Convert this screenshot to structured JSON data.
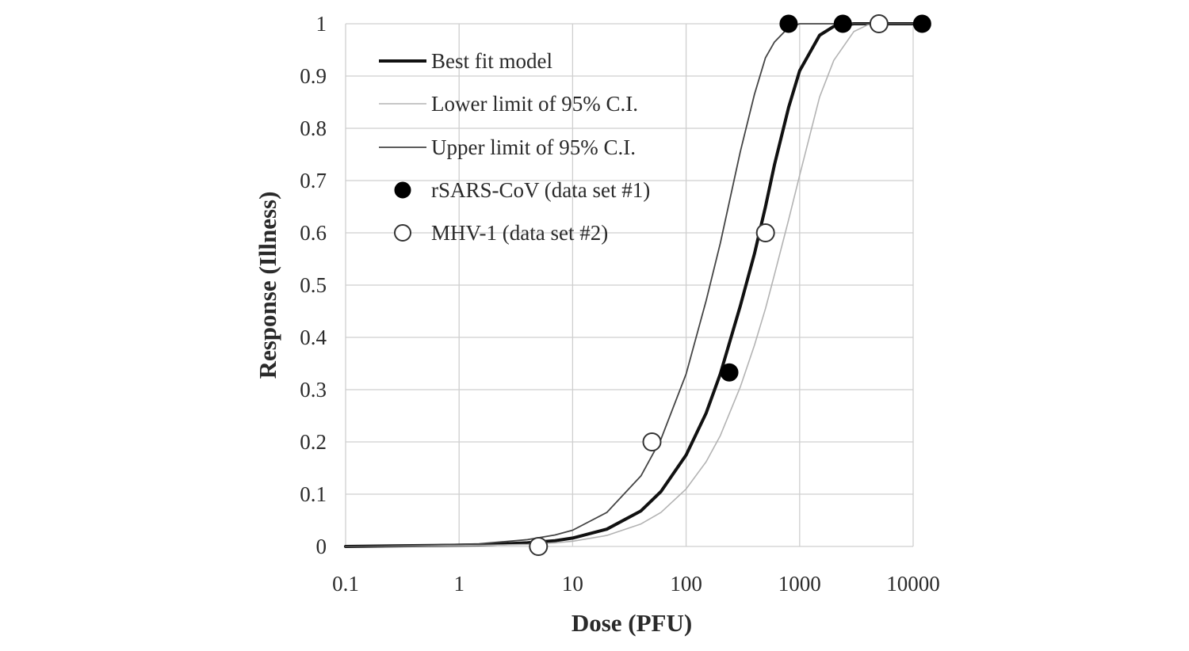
{
  "chart_data": {
    "type": "line",
    "title": "",
    "xlabel": "Dose (PFU)",
    "ylabel": "Response (Illness)",
    "x_scale": "log",
    "xlim": [
      0.1,
      10000
    ],
    "ylim": [
      0,
      1
    ],
    "x_ticks": [
      "0.1",
      "1",
      "10",
      "100",
      "1000",
      "10000"
    ],
    "y_ticks": [
      "0",
      "0.1",
      "0.2",
      "0.3",
      "0.4",
      "0.5",
      "0.6",
      "0.7",
      "0.8",
      "0.9",
      "1"
    ],
    "grid": true,
    "legend_position": "top-left",
    "series": [
      {
        "name": "Best fit model",
        "kind": "line",
        "color": "#111111",
        "x": [
          0.1,
          0.6,
          1.5,
          4,
          7,
          10,
          20,
          40,
          60,
          100,
          150,
          200,
          300,
          400,
          500,
          600,
          800,
          1000,
          1500,
          2000,
          3000,
          4000,
          10000
        ],
        "y": [
          0,
          0.002,
          0.003,
          0.007,
          0.011,
          0.016,
          0.033,
          0.068,
          0.105,
          0.175,
          0.255,
          0.33,
          0.46,
          0.56,
          0.65,
          0.73,
          0.84,
          0.91,
          0.978,
          0.995,
          1,
          1,
          1
        ]
      },
      {
        "name": "Lower limit of 95% C.I.",
        "kind": "line",
        "color": "#b3b3b3",
        "x": [
          0.1,
          0.6,
          1.5,
          4,
          7,
          10,
          20,
          40,
          60,
          100,
          150,
          200,
          300,
          400,
          500,
          600,
          800,
          1000,
          1500,
          2000,
          3000,
          4000,
          5000,
          10000
        ],
        "y": [
          0,
          0.001,
          0.002,
          0.004,
          0.007,
          0.01,
          0.021,
          0.043,
          0.065,
          0.11,
          0.162,
          0.212,
          0.305,
          0.385,
          0.455,
          0.52,
          0.625,
          0.71,
          0.86,
          0.93,
          0.985,
          0.998,
          1,
          1
        ]
      },
      {
        "name": "Upper limit of 95% C.I.",
        "kind": "line",
        "color": "#444444",
        "x": [
          0.1,
          0.6,
          1.5,
          4,
          7,
          10,
          20,
          40,
          60,
          100,
          150,
          200,
          300,
          400,
          500,
          600,
          800,
          1000,
          1500,
          2000,
          10000
        ],
        "y": [
          0,
          0.003,
          0.005,
          0.013,
          0.022,
          0.031,
          0.065,
          0.135,
          0.205,
          0.33,
          0.47,
          0.58,
          0.755,
          0.865,
          0.935,
          0.965,
          0.993,
          1,
          1,
          1,
          1
        ]
      },
      {
        "name": "rSARS-CoV (data set #1)",
        "kind": "scatter",
        "marker": "filled",
        "color": "#000000",
        "x": [
          240,
          800,
          2400,
          12000
        ],
        "y": [
          0.333,
          1,
          1,
          1
        ]
      },
      {
        "name": "MHV-1 (data set #2)",
        "kind": "scatter",
        "marker": "open",
        "color": "#333333",
        "x": [
          5,
          50,
          500,
          5000
        ],
        "y": [
          0,
          0.2,
          0.6,
          1
        ]
      }
    ]
  }
}
